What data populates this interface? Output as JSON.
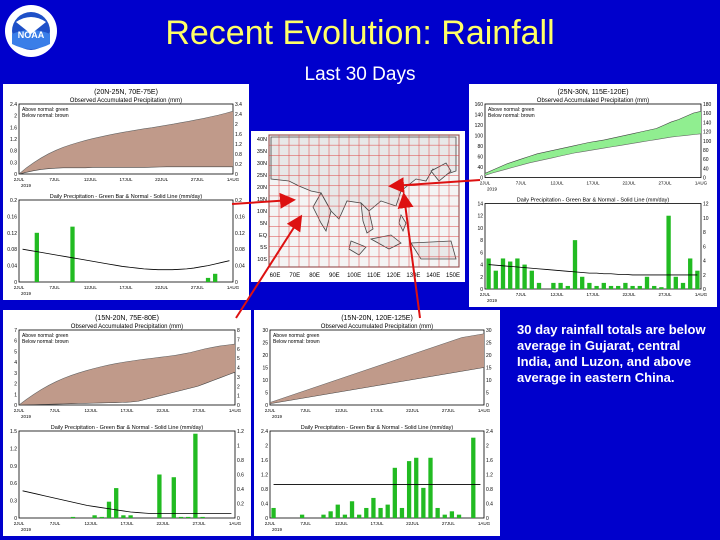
{
  "title": "Recent Evolution: Rainfall",
  "subtitle": "Last 30 Days",
  "logo_text": "NOAA",
  "note": "30 day rainfall totals are below average in Gujarat, central India, and Luzon, and above average in eastern China.",
  "colors": {
    "background": "#0000cc",
    "title": "#ffff66",
    "below": "#c09a8a",
    "above": "#90ee90",
    "bar": "#22bb22",
    "arrow": "#dd1111"
  },
  "map": {
    "lon_ticks": [
      "60E",
      "70E",
      "80E",
      "90E",
      "100E",
      "110E",
      "120E",
      "130E",
      "140E",
      "150E"
    ],
    "lat_ticks": [
      "40N",
      "35N",
      "30N",
      "25N",
      "20N",
      "15N",
      "10N",
      "5N",
      "EQ",
      "5S",
      "10S"
    ]
  },
  "chart_data": [
    {
      "type": "area",
      "region": "(20N-25N, 70E-75E)",
      "title": "Observed Accumulated Precipitation (mm)",
      "legend": [
        "Above normal: green",
        "Below normal: brown"
      ],
      "anomaly": "below",
      "ylim": [
        0,
        3.4
      ],
      "yticks": [
        "0",
        "0.3",
        "0.8",
        "1.2",
        "1.6",
        "2",
        "2.4"
      ],
      "yticks_right": [
        "0",
        "0.2",
        "0.8",
        "1.2",
        "1.6",
        "2",
        "2.4",
        "3.4"
      ],
      "xticks": [
        "2JUL",
        "7JUL",
        "12JUL",
        "17JUL",
        "22JUL",
        "27JUL",
        "1AUG"
      ],
      "year": "2019",
      "observed": [
        0,
        0.08,
        0.16,
        0.22,
        0.26,
        0.28,
        0.3,
        0.3,
        0.3,
        0.3,
        0.32,
        0.32,
        0.32,
        0.32,
        0.32,
        0.32,
        0.32,
        0.32,
        0.33,
        0.34,
        0.35,
        0.35,
        0.35,
        0.35,
        0.35,
        0.35,
        0.35,
        0.35,
        0.35,
        0.35
      ],
      "normal": [
        0,
        0.3,
        0.55,
        0.78,
        0.98,
        1.15,
        1.3,
        1.42,
        1.53,
        1.63,
        1.72,
        1.8,
        1.88,
        1.95,
        2.02,
        2.08,
        2.14,
        2.2,
        2.25,
        2.31,
        2.37,
        2.43,
        2.5,
        2.56,
        2.63,
        2.7,
        2.78,
        2.86,
        2.95,
        3.05
      ]
    },
    {
      "type": "bar",
      "region": "(20N-25N, 70E-75E)",
      "title": "Daily Precipitation - Green Bar & Normal - Solid Line (mm/day)",
      "ylim": [
        0,
        0.2
      ],
      "yticks": [
        "0",
        "0.04",
        "0.08",
        "0.12",
        "0.16",
        "0.2"
      ],
      "yticks_right": [
        "0",
        "0.04",
        "0.08",
        "0.12",
        "0.16",
        "0.2"
      ],
      "xticks": [
        "2JUL",
        "7JUL",
        "12JUL",
        "17JUL",
        "22JUL",
        "27JUL",
        "1AUG"
      ],
      "year": "2019",
      "values": [
        0,
        0,
        0.12,
        0,
        0,
        0,
        0,
        0.135,
        0,
        0,
        0,
        0,
        0,
        0,
        0,
        0,
        0,
        0,
        0,
        0,
        0,
        0,
        0,
        0,
        0,
        0,
        0.01,
        0.02,
        0,
        0
      ],
      "normal": [
        0.08,
        0.077,
        0.074,
        0.071,
        0.068,
        0.065,
        0.062,
        0.059,
        0.056,
        0.053,
        0.05,
        0.047,
        0.044,
        0.041,
        0.038,
        0.036,
        0.034,
        0.032,
        0.031,
        0.03,
        0.03,
        0.03,
        0.031,
        0.032,
        0.034,
        0.037,
        0.04,
        0.044,
        0.048,
        0.052
      ]
    },
    {
      "type": "area",
      "region": "(25N-30N, 115E-120E)",
      "title": "Observed Accumulated Precipitation (mm)",
      "legend": [
        "Above normal: green",
        "Below normal: brown"
      ],
      "anomaly": "above",
      "ylim": [
        0,
        180
      ],
      "yticks": [
        "0",
        "40",
        "60",
        "80",
        "100",
        "120",
        "140",
        "160"
      ],
      "yticks_right": [
        "0",
        "40",
        "60",
        "80",
        "100",
        "120",
        "140",
        "160",
        "180"
      ],
      "xticks": [
        "2JUL",
        "7JUL",
        "12JUL",
        "17JUL",
        "22JUL",
        "27JUL",
        "1AUG"
      ],
      "year": "2019",
      "observed": [
        10,
        18,
        26,
        34,
        40,
        46,
        52,
        58,
        62,
        66,
        70,
        74,
        78,
        82,
        86,
        89,
        92,
        96,
        100,
        104,
        108,
        112,
        116,
        120,
        128,
        136,
        142,
        150,
        158,
        162
      ],
      "normal": [
        5,
        11,
        16,
        21,
        26,
        31,
        36,
        40,
        44,
        48,
        52,
        56,
        60,
        63,
        66,
        69,
        72,
        75,
        78,
        81,
        84,
        87,
        90,
        93,
        96,
        99,
        101,
        103,
        105,
        107
      ]
    },
    {
      "type": "bar",
      "region": "(25N-30N, 115E-120E)",
      "title": "Daily Precipitation - Green Bar & Normal - Solid Line (mm/day)",
      "ylim": [
        0,
        14
      ],
      "yticks": [
        "0",
        "2",
        "4",
        "6",
        "8",
        "10",
        "12",
        "14"
      ],
      "yticks_right": [
        "0",
        "2",
        "4",
        "6",
        "8",
        "10",
        "12"
      ],
      "xticks": [
        "2JUL",
        "7JUL",
        "12JUL",
        "17JUL",
        "22JUL",
        "27JUL",
        "1AUG"
      ],
      "year": "2019",
      "values": [
        5,
        3,
        5,
        4.5,
        5,
        4,
        3,
        1,
        0,
        1,
        1,
        0.5,
        8,
        2,
        1,
        0.5,
        1,
        0.5,
        0.5,
        1,
        0.5,
        0.5,
        2,
        0.5,
        0.3,
        12,
        2,
        1,
        5,
        3
      ],
      "normal": [
        4,
        3.9,
        3.8,
        3.7,
        3.6,
        3.5,
        3.4,
        3.3,
        3.2,
        3.1,
        3,
        2.9,
        2.8,
        2.7,
        2.6,
        2.6,
        2.5,
        2.5,
        2.4,
        2.4,
        2.3,
        2.3,
        2.3,
        2.3,
        2.3,
        2.3,
        2.3,
        2.3,
        2.3,
        2.3
      ]
    },
    {
      "type": "area",
      "region": "(15N-20N, 75E-80E)",
      "title": "Observed Accumulated Precipitation (mm)",
      "legend": [
        "Above normal: green",
        "Below normal: brown"
      ],
      "anomaly": "below",
      "ylim": [
        0,
        8
      ],
      "yticks": [
        "0",
        "1",
        "2",
        "3",
        "4",
        "5",
        "6",
        "7"
      ],
      "yticks_right": [
        "0",
        "1",
        "2",
        "3",
        "4",
        "5",
        "6",
        "7",
        "8"
      ],
      "xticks": [
        "2JUL",
        "7JUL",
        "12JUL",
        "17JUL",
        "22JUL",
        "27JUL",
        "1AUG"
      ],
      "year": "2019",
      "observed": [
        0,
        0.02,
        0.04,
        0.06,
        0.08,
        0.1,
        0.12,
        0.14,
        0.16,
        0.18,
        0.2,
        0.22,
        0.24,
        0.26,
        0.28,
        0.32,
        0.4,
        0.6,
        0.8,
        1,
        1.2,
        1.4,
        1.6,
        1.8,
        2,
        2.3,
        2.6,
        2.9,
        3.2,
        3.5
      ],
      "normal": [
        0,
        0.6,
        1.15,
        1.65,
        2.1,
        2.5,
        2.85,
        3.15,
        3.42,
        3.66,
        3.88,
        4.08,
        4.26,
        4.42,
        4.56,
        4.68,
        4.8,
        4.9,
        5,
        5.1,
        5.2,
        5.3,
        5.45,
        5.6,
        5.8,
        6,
        6.15,
        6.3,
        6.4,
        6.5
      ]
    },
    {
      "type": "bar",
      "region": "(15N-20N, 75E-80E)",
      "title": "Daily Precipitation - Green Bar & Normal - Solid Line (mm/day)",
      "ylim": [
        0,
        1.6
      ],
      "yticks": [
        "0",
        "0.3",
        "0.6",
        "0.9",
        "1.2",
        "1.5"
      ],
      "yticks_right": [
        "0",
        "0.2",
        "0.4",
        "0.6",
        "0.8",
        "1",
        "1.2"
      ],
      "xticks": [
        "2JUL",
        "7JUL",
        "12JUL",
        "17JUL",
        "22JUL",
        "27JUL",
        "1AUG"
      ],
      "year": "2019",
      "values": [
        0,
        0,
        0,
        0,
        0,
        0,
        0,
        0.02,
        0,
        0,
        0.05,
        0.02,
        0.3,
        0.55,
        0.05,
        0.05,
        0,
        0,
        0,
        0.8,
        0,
        0.75,
        0.02,
        0.02,
        1.55,
        0.02,
        0,
        0,
        0,
        0
      ],
      "normal": [
        0.5,
        0.47,
        0.44,
        0.41,
        0.38,
        0.35,
        0.32,
        0.29,
        0.26,
        0.23,
        0.21,
        0.19,
        0.17,
        0.15,
        0.13,
        0.11,
        0.1,
        0.09,
        0.08,
        0.08,
        0.08,
        0.08,
        0.08,
        0.08,
        0.08,
        0.08,
        0.08,
        0.08,
        0.08,
        0.08
      ]
    },
    {
      "type": "area",
      "region": "(15N-20N, 120E-125E)",
      "title": "Observed Accumulated Precipitation (mm)",
      "legend": [
        "Above normal: green",
        "Below normal: brown"
      ],
      "anomaly": "below",
      "ylim": [
        0,
        30
      ],
      "yticks": [
        "0",
        "5",
        "10",
        "15",
        "20",
        "25",
        "30"
      ],
      "yticks_right": [
        "0",
        "5",
        "10",
        "15",
        "20",
        "25",
        "30"
      ],
      "xticks": [
        "2JUL",
        "7JUL",
        "12JUL",
        "17JUL",
        "22JUL",
        "27JUL",
        "1AUG"
      ],
      "year": "2019",
      "observed": [
        0.5,
        1,
        1.5,
        2,
        2.5,
        3,
        3.5,
        4,
        4.5,
        5,
        5.5,
        6,
        6.5,
        7,
        7.5,
        8,
        8.5,
        9,
        9.5,
        10,
        10.5,
        11,
        11.5,
        12,
        12.5,
        13,
        13.5,
        14,
        14.5,
        15
      ],
      "normal": [
        1,
        2,
        3,
        4,
        5,
        6,
        7,
        8,
        9,
        10,
        11,
        12,
        13,
        14,
        15,
        16,
        17,
        18,
        19,
        20,
        21,
        22,
        23,
        24,
        25,
        26,
        27,
        27.5,
        28,
        28.5
      ]
    },
    {
      "type": "bar",
      "region": "(15N-20N, 120E-125E)",
      "title": "Daily Precipitation - Green Bar & Normal - Solid Line (mm/day)",
      "ylim": [
        0,
        2.6
      ],
      "yticks": [
        "0",
        "0.4",
        "0.8",
        "1.2",
        "1.6",
        "2",
        "2.4"
      ],
      "yticks_right": [
        "0",
        "0.4",
        "0.8",
        "1.2",
        "1.6",
        "2",
        "2.4"
      ],
      "xticks": [
        "2JUL",
        "7JUL",
        "12JUL",
        "17JUL",
        "22JUL",
        "27JUL",
        "1AUG"
      ],
      "year": "2019",
      "values": [
        0.3,
        0,
        0,
        0,
        0.1,
        0,
        0,
        0.1,
        0.2,
        0.4,
        0.1,
        0.5,
        0.1,
        0.3,
        0.6,
        0.3,
        0.4,
        1.5,
        0.3,
        1.7,
        1.8,
        0.9,
        1.8,
        0.3,
        0.1,
        0.2,
        0.1,
        0,
        2.4,
        0
      ],
      "normal": [
        1,
        1,
        1,
        1,
        1,
        1,
        1,
        1,
        1,
        1,
        1,
        1,
        1,
        1,
        1,
        1,
        1,
        1,
        1,
        1,
        1,
        1,
        1,
        1,
        1,
        1,
        1,
        1,
        1,
        1
      ]
    }
  ]
}
